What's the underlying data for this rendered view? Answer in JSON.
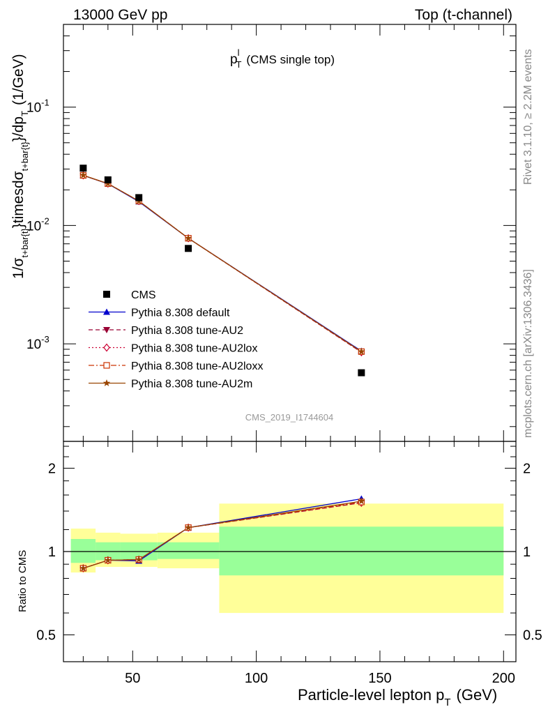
{
  "header": {
    "left": "13000 GeV pp",
    "right": "Top (t-channel)"
  },
  "side": {
    "rivet": "Rivet 3.1.10, ≥ 2.2M events",
    "mcplots": "mcplots.cern.ch [arXiv:1306.3436]"
  },
  "plot_title": {
    "main": "p",
    "sup": "l",
    "sub": "T",
    "rest": "(CMS single top)"
  },
  "analysis_id": "CMS_2019_I1744604",
  "ylabel": {
    "p1": "1/σ",
    "s1": "t+bar{t}",
    "p2": "}timesdσ",
    "s2": "t+bar{t}",
    "p3": "}/dp",
    "s3": "T",
    "p4": "(1/GeV)"
  },
  "xlabel": {
    "main": "Particle-level lepton p",
    "sub": "T",
    "unit": "(GeV)"
  },
  "ratio_ylabel": "Ratio to CMS",
  "colors": {
    "default": "#0000cc",
    "au2": "#990033",
    "au2lox": "#cc0033",
    "au2loxx": "#cc3300",
    "au2m": "#994400",
    "band_inner": "#99ff99",
    "band_outer": "#ffff99"
  },
  "chart_data": [
    {
      "type": "line",
      "title": "",
      "x_scale": "linear",
      "y_scale": "log",
      "xlim": [
        22,
        205
      ],
      "ylim": [
        0.00015,
        0.5
      ],
      "y_tick_labels": [
        "10^{-3}",
        "10^{-2}",
        "10^{-1}"
      ],
      "legend_position": "bottom-left",
      "data": {
        "name": "CMS",
        "marker": "square",
        "x": [
          30,
          40,
          52.5,
          72.5,
          142.5
        ],
        "y": [
          0.0305,
          0.0243,
          0.0172,
          0.0064,
          0.00057
        ]
      },
      "series": [
        {
          "name": "Pythia 8.308 default",
          "color_key": "default",
          "marker": "triangle-up",
          "dash": "solid",
          "x": [
            30,
            40,
            52.5,
            72.5,
            142.5
          ],
          "y": [
            0.0265,
            0.0225,
            0.0159,
            0.0078,
            0.00087
          ]
        },
        {
          "name": "Pythia 8.308 tune-AU2",
          "color_key": "au2",
          "marker": "triangle-down",
          "dash": "dashed",
          "x": [
            30,
            40,
            52.5,
            72.5,
            142.5
          ],
          "y": [
            0.0265,
            0.0226,
            0.0161,
            0.0078,
            0.00085
          ]
        },
        {
          "name": "Pythia 8.308 tune-AU2lox",
          "color_key": "au2lox",
          "marker": "diamond-open",
          "dash": "dotted",
          "x": [
            30,
            40,
            52.5,
            72.5,
            142.5
          ],
          "y": [
            0.0265,
            0.0226,
            0.0161,
            0.0078,
            0.00085
          ]
        },
        {
          "name": "Pythia 8.308 tune-AU2loxx",
          "color_key": "au2loxx",
          "marker": "square-open",
          "dash": "dashdot",
          "x": [
            30,
            40,
            52.5,
            72.5,
            142.5
          ],
          "y": [
            0.0265,
            0.0226,
            0.0161,
            0.0078,
            0.00086
          ]
        },
        {
          "name": "Pythia 8.308 tune-AU2m",
          "color_key": "au2m",
          "marker": "star",
          "dash": "solid",
          "x": [
            30,
            40,
            52.5,
            72.5,
            142.5
          ],
          "y": [
            0.0266,
            0.0226,
            0.0161,
            0.0078,
            0.00086
          ]
        }
      ]
    },
    {
      "type": "line",
      "title": "",
      "ylabel": "Ratio to CMS",
      "xlabel": "Particle-level lepton pT (GeV)",
      "x_scale": "linear",
      "y_scale": "log",
      "xlim": [
        22,
        205
      ],
      "ylim": [
        0.4,
        2.5
      ],
      "x_ticks": [
        50,
        100,
        150,
        200
      ],
      "y_ticks": [
        0.5,
        1,
        2
      ],
      "reference_line": 1,
      "bands": {
        "bin_edges": [
          25,
          35,
          45,
          60,
          85,
          200
        ],
        "inner_lo": [
          0.91,
          0.93,
          0.93,
          0.94,
          0.82
        ],
        "inner_hi": [
          1.11,
          1.08,
          1.08,
          1.08,
          1.23
        ],
        "outer_lo": [
          0.84,
          0.88,
          0.88,
          0.87,
          0.6
        ],
        "outer_hi": [
          1.21,
          1.17,
          1.16,
          1.17,
          1.49
        ]
      },
      "series": [
        {
          "name": "Pythia 8.308 default",
          "color_key": "default",
          "marker": "triangle-up",
          "dash": "solid",
          "x": [
            30,
            40,
            52.5,
            72.5,
            142.5
          ],
          "y": [
            0.87,
            0.93,
            0.925,
            1.22,
            1.55
          ]
        },
        {
          "name": "Pythia 8.308 tune-AU2",
          "color_key": "au2",
          "marker": "triangle-down",
          "dash": "dashed",
          "x": [
            30,
            40,
            52.5,
            72.5,
            142.5
          ],
          "y": [
            0.87,
            0.93,
            0.935,
            1.22,
            1.5
          ]
        },
        {
          "name": "Pythia 8.308 tune-AU2lox",
          "color_key": "au2lox",
          "marker": "diamond-open",
          "dash": "dotted",
          "x": [
            30,
            40,
            52.5,
            72.5,
            142.5
          ],
          "y": [
            0.87,
            0.93,
            0.935,
            1.22,
            1.5
          ]
        },
        {
          "name": "Pythia 8.308 tune-AU2loxx",
          "color_key": "au2loxx",
          "marker": "square-open",
          "dash": "dashdot",
          "x": [
            30,
            40,
            52.5,
            72.5,
            142.5
          ],
          "y": [
            0.87,
            0.93,
            0.935,
            1.22,
            1.51
          ]
        },
        {
          "name": "Pythia 8.308 tune-AU2m",
          "color_key": "au2m",
          "marker": "star",
          "dash": "solid",
          "x": [
            30,
            40,
            52.5,
            72.5,
            142.5
          ],
          "y": [
            0.87,
            0.93,
            0.935,
            1.22,
            1.52
          ]
        }
      ]
    }
  ]
}
